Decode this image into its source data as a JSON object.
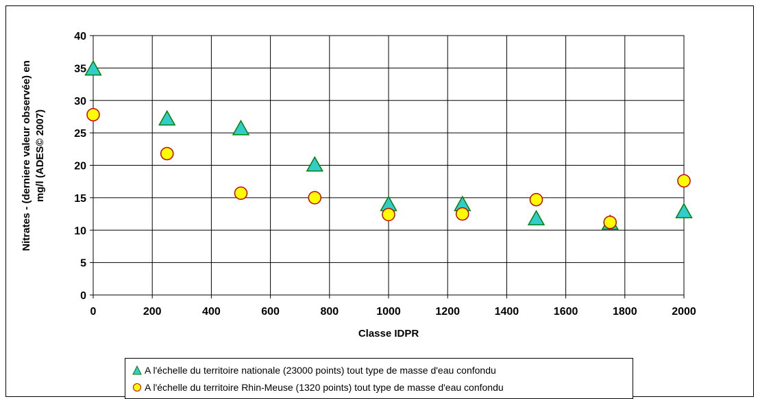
{
  "chart_data": {
    "type": "scatter",
    "xlabel": "Classe IDPR",
    "ylabel": "Nitrates - (derniere valeur observée) en mg/l (ADES© 2007)",
    "xlim": [
      0,
      2000
    ],
    "ylim": [
      0,
      40
    ],
    "x_ticks": [
      "0",
      "200",
      "400",
      "600",
      "800",
      "1000",
      "1200",
      "1400",
      "1600",
      "1800",
      "2000"
    ],
    "y_ticks": [
      "0",
      "5",
      "10",
      "15",
      "20",
      "25",
      "30",
      "35",
      "40"
    ],
    "grid": true,
    "legend_position": "bottom",
    "series": [
      {
        "name": "A l'échelle du territoire nationale (23000 points) tout type de masse d'eau confondu",
        "marker": "triangle",
        "fill": "#33CCCC",
        "stroke": "#008000",
        "x": [
          0,
          250,
          500,
          750,
          1000,
          1250,
          1500,
          1750,
          2000
        ],
        "y": [
          34.8,
          27.1,
          25.6,
          20.0,
          13.9,
          13.9,
          11.7,
          11.0,
          12.8
        ]
      },
      {
        "name": "A l'échelle du territoire Rhin-Meuse (1320 points) tout type de masse d'eau confondu",
        "marker": "circle",
        "fill": "#FFFF00",
        "stroke": "#CC0000",
        "x": [
          0,
          250,
          500,
          750,
          1000,
          1250,
          1500,
          1750,
          2000
        ],
        "y": [
          27.8,
          21.8,
          15.7,
          15.0,
          12.4,
          12.5,
          14.7,
          11.2,
          17.6
        ]
      }
    ]
  }
}
